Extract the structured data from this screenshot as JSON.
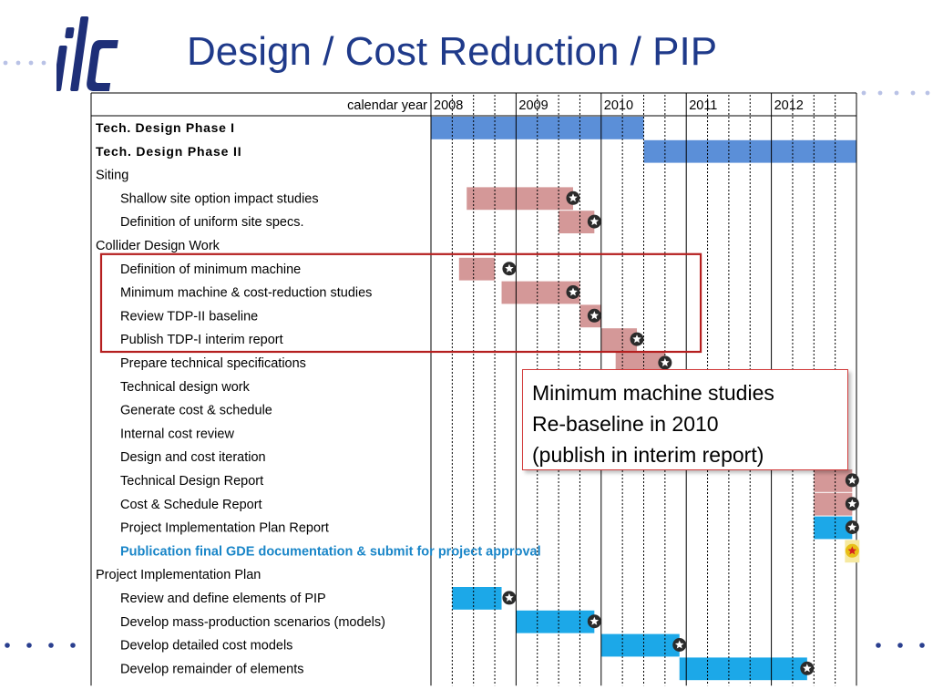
{
  "slide": {
    "title": "Design / Cost Reduction / PIP",
    "colors": {
      "title": "#1f3a8a",
      "logo": "#1e2f78",
      "dots": "#b9c2e6",
      "dots_bottom": "#2a3f8f"
    }
  },
  "callout": {
    "lines": [
      "Minimum machine studies",
      "Re-baseline in 2010",
      "(publish in interim report)"
    ],
    "border_color": "#d23c3c"
  },
  "chart_data": {
    "type": "gantt",
    "header_label": "calendar year",
    "years": [
      "2008",
      "2009",
      "2010",
      "2011",
      "2012"
    ],
    "x_range": [
      2008.0,
      2013.0
    ],
    "quarter_gridlines": true,
    "colors": {
      "design": "#5b8fd8",
      "pink": "#d49898",
      "blue": "#1ca8e8",
      "highlight_text": "#1a86c8",
      "milestone": "#2b2b2b",
      "milestone_final": "#e8c018",
      "highlight_box": "#b51f1f"
    },
    "tasks": [
      {
        "name": "Tech. Design Phase I",
        "bold": true,
        "indent": 0,
        "bars": [
          {
            "start": 2008.0,
            "end": 2010.5,
            "color": "design"
          }
        ]
      },
      {
        "name": "Tech. Design Phase II",
        "bold": true,
        "indent": 0,
        "bars": [
          {
            "start": 2010.5,
            "end": 2013.0,
            "color": "design"
          }
        ]
      },
      {
        "name": "Siting",
        "indent": 0
      },
      {
        "name": "Shallow site option impact studies",
        "indent": 1,
        "bars": [
          {
            "start": 2008.42,
            "end": 2009.67,
            "color": "pink"
          }
        ],
        "milestone": 2009.67
      },
      {
        "name": "Definition of uniform site specs.",
        "indent": 1,
        "bars": [
          {
            "start": 2009.5,
            "end": 2009.92,
            "color": "pink"
          }
        ],
        "milestone": 2009.92
      },
      {
        "name": "Collider Design Work",
        "indent": 0
      },
      {
        "name": "Definition of minimum machine",
        "indent": 1,
        "bars": [
          {
            "start": 2008.33,
            "end": 2008.75,
            "color": "pink"
          }
        ],
        "milestone": 2008.92
      },
      {
        "name": "Minimum machine & cost-reduction studies",
        "indent": 1,
        "bars": [
          {
            "start": 2008.83,
            "end": 2009.75,
            "color": "pink"
          }
        ],
        "milestone": 2009.67
      },
      {
        "name": "Review TDP-II baseline",
        "indent": 1,
        "bars": [
          {
            "start": 2009.75,
            "end": 2010.0,
            "color": "pink"
          }
        ],
        "milestone": 2009.92
      },
      {
        "name": "Publish TDP-I interim report",
        "indent": 1,
        "bars": [
          {
            "start": 2010.0,
            "end": 2010.42,
            "color": "pink"
          }
        ],
        "milestone": 2010.42
      },
      {
        "name": "Prepare technical specifications",
        "indent": 1,
        "bars": [
          {
            "start": 2010.17,
            "end": 2010.75,
            "color": "pink"
          }
        ],
        "milestone": 2010.75
      },
      {
        "name": "Technical design work",
        "indent": 1
      },
      {
        "name": "Generate cost & schedule",
        "indent": 1
      },
      {
        "name": "Internal cost review",
        "indent": 1
      },
      {
        "name": "Design and cost iteration",
        "indent": 1
      },
      {
        "name": "Technical Design Report",
        "indent": 1,
        "bars": [
          {
            "start": 2012.5,
            "end": 2012.95,
            "color": "pink"
          }
        ],
        "milestone": 2012.95
      },
      {
        "name": "Cost & Schedule Report",
        "indent": 1,
        "bars": [
          {
            "start": 2012.5,
            "end": 2012.95,
            "color": "pink"
          }
        ],
        "milestone": 2012.95
      },
      {
        "name": "Project Implementation Plan Report",
        "indent": 1,
        "bars": [
          {
            "start": 2012.5,
            "end": 2012.95,
            "color": "blue"
          }
        ],
        "milestone": 2012.95
      },
      {
        "name": "Publication final GDE documentation & submit for project approval",
        "indent": 1,
        "bold": true,
        "highlight": true,
        "milestone": 2012.95,
        "milestone_final": true
      },
      {
        "name": "Project Implementation Plan",
        "indent": 0
      },
      {
        "name": "Review and define elements of PIP",
        "indent": 1,
        "bars": [
          {
            "start": 2008.25,
            "end": 2008.83,
            "color": "blue"
          }
        ],
        "milestone": 2008.92
      },
      {
        "name": "Develop mass-production scenarios (models)",
        "indent": 1,
        "bars": [
          {
            "start": 2009.0,
            "end": 2009.92,
            "color": "blue"
          }
        ],
        "milestone": 2009.92
      },
      {
        "name": "Develop detailed cost models",
        "indent": 1,
        "bars": [
          {
            "start": 2010.0,
            "end": 2010.92,
            "color": "blue"
          }
        ],
        "milestone": 2010.92
      },
      {
        "name": "Develop remainder of elements",
        "indent": 1,
        "bars": [
          {
            "start": 2010.92,
            "end": 2012.42,
            "color": "blue"
          }
        ],
        "milestone": 2012.42
      }
    ],
    "highlight_box": {
      "first_task": "Definition of minimum machine",
      "last_task": "Publish TDP-I interim report",
      "x_end": 2011.17
    }
  }
}
